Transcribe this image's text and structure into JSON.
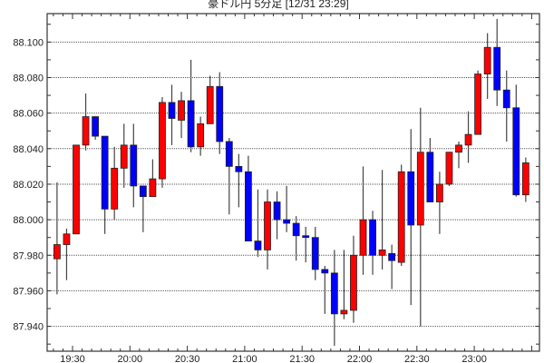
{
  "chart_data": {
    "type": "candlestick",
    "title": "豪ドル円 5分足 [12/31 23:29]",
    "xlabel": "",
    "ylabel": "",
    "ylim": [
      87.926,
      88.116
    ],
    "grid": true,
    "y_ticks": [
      "87.940",
      "87.960",
      "87.980",
      "88.000",
      "88.020",
      "88.040",
      "88.060",
      "88.080",
      "88.100"
    ],
    "x_ticks": [
      "19:30",
      "20:00",
      "20:30",
      "21:00",
      "21:30",
      "22:00",
      "22:30",
      "23:00"
    ],
    "colors": {
      "up": "#ff0000",
      "down": "#0000ff",
      "wick": "#444444",
      "grid": "#555555"
    },
    "columns": [
      "time",
      "open",
      "high",
      "low",
      "close"
    ],
    "candles": [
      [
        "19:20",
        87.978,
        88.021,
        87.958,
        87.986
      ],
      [
        "19:25",
        87.986,
        87.995,
        87.966,
        87.992
      ],
      [
        "19:30",
        87.992,
        88.042,
        87.992,
        88.042
      ],
      [
        "19:35",
        88.042,
        88.071,
        88.039,
        88.058
      ],
      [
        "19:40",
        88.058,
        88.058,
        88.045,
        88.047
      ],
      [
        "19:45",
        88.047,
        88.047,
        87.992,
        88.006
      ],
      [
        "19:50",
        88.006,
        88.041,
        88.0,
        88.029
      ],
      [
        "19:55",
        88.029,
        88.054,
        88.018,
        88.042
      ],
      [
        "20:00",
        88.042,
        88.054,
        88.007,
        88.019
      ],
      [
        "20:05",
        88.019,
        88.019,
        87.993,
        88.013
      ],
      [
        "20:10",
        88.013,
        88.034,
        88.013,
        88.023
      ],
      [
        "20:15",
        88.023,
        88.069,
        88.018,
        88.066
      ],
      [
        "20:20",
        88.066,
        88.076,
        88.042,
        88.057
      ],
      [
        "20:25",
        88.056,
        88.072,
        88.046,
        88.067
      ],
      [
        "20:30",
        88.067,
        88.09,
        88.038,
        88.041
      ],
      [
        "20:35",
        88.041,
        88.058,
        88.036,
        88.054
      ],
      [
        "20:40",
        88.054,
        88.081,
        88.054,
        88.075
      ],
      [
        "20:45",
        88.075,
        88.083,
        88.037,
        88.044
      ],
      [
        "20:50",
        88.044,
        88.046,
        88.003,
        88.03
      ],
      [
        "20:55",
        88.03,
        88.037,
        88.007,
        88.027
      ],
      [
        "21:00",
        88.027,
        88.036,
        87.988,
        87.988
      ],
      [
        "21:05",
        87.988,
        88.017,
        87.979,
        87.983
      ],
      [
        "21:10",
        87.983,
        88.017,
        87.972,
        88.01
      ],
      [
        "21:15",
        88.01,
        88.016,
        87.989,
        88.0
      ],
      [
        "21:20",
        88.0,
        88.019,
        87.993,
        87.998
      ],
      [
        "21:25",
        87.998,
        88.002,
        87.977,
        87.991
      ],
      [
        "21:30",
        87.991,
        87.996,
        87.976,
        87.99
      ],
      [
        "21:35",
        87.99,
        87.996,
        87.966,
        87.972
      ],
      [
        "21:40",
        87.972,
        87.974,
        87.947,
        87.97
      ],
      [
        "21:45",
        87.97,
        87.983,
        87.929,
        87.947
      ],
      [
        "21:50",
        87.947,
        87.983,
        87.944,
        87.949
      ],
      [
        "21:55",
        87.949,
        87.991,
        87.942,
        87.98
      ],
      [
        "22:00",
        87.98,
        88.03,
        87.969,
        88.0
      ],
      [
        "22:05",
        88.0,
        88.005,
        87.969,
        87.98
      ],
      [
        "22:10",
        87.98,
        88.028,
        87.972,
        87.983
      ],
      [
        "22:15",
        87.981,
        87.986,
        87.961,
        87.977
      ],
      [
        "22:20",
        87.976,
        88.031,
        87.974,
        88.027
      ],
      [
        "22:25",
        88.027,
        88.051,
        87.952,
        87.997
      ],
      [
        "22:30",
        87.997,
        88.063,
        87.94,
        88.038
      ],
      [
        "22:35",
        88.038,
        88.046,
        88.01,
        88.01
      ],
      [
        "22:40",
        88.01,
        88.027,
        87.992,
        88.02
      ],
      [
        "22:45",
        88.02,
        88.038,
        88.019,
        88.038
      ],
      [
        "22:50",
        88.038,
        88.044,
        88.029,
        88.042
      ],
      [
        "22:55",
        88.042,
        88.061,
        88.032,
        88.048
      ],
      [
        "23:00",
        88.048,
        88.084,
        88.048,
        88.082
      ],
      [
        "23:05",
        88.082,
        88.105,
        88.068,
        88.097
      ],
      [
        "23:10",
        88.097,
        88.113,
        88.064,
        88.073
      ],
      [
        "23:15",
        88.073,
        88.084,
        88.044,
        88.063
      ],
      [
        "23:20",
        88.063,
        88.076,
        88.013,
        88.014
      ],
      [
        "23:25",
        88.014,
        88.035,
        88.01,
        88.032
      ]
    ]
  }
}
